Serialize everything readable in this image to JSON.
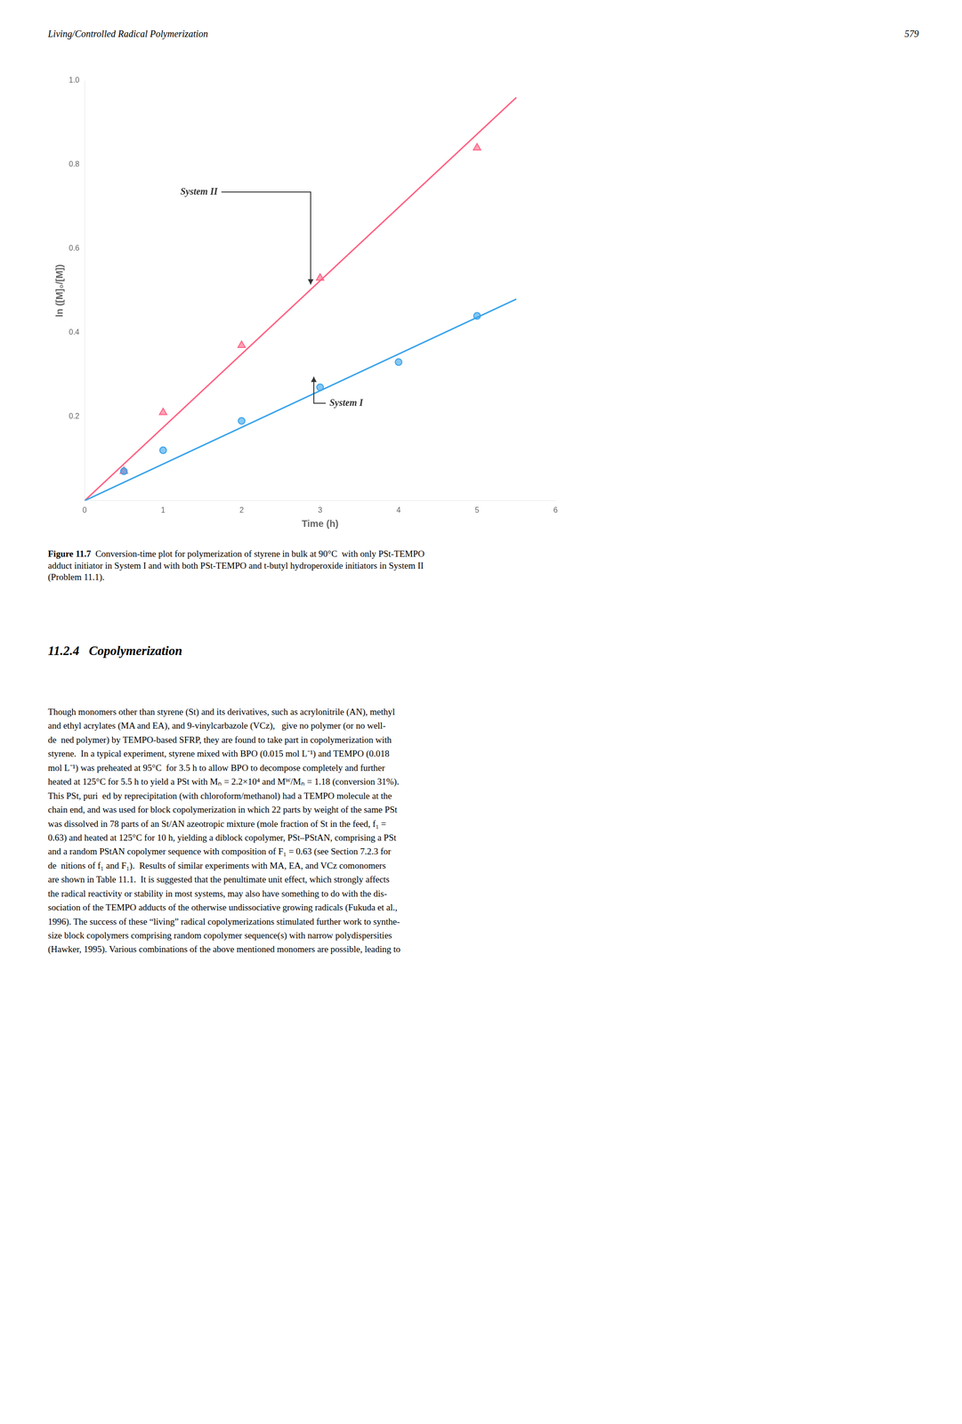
{
  "header_left": "Living/Controlled Radical Polymerization",
  "header_right": "579",
  "caption_bold": "Figure 11.7",
  "caption_rest": "  Conversion-time plot for polymerization of styrene in bulk at 90°C  with only PSt-TEMPO\nadduct initiator in System I and with both PSt-TEMPO and t-butyl hydroperoxide initiators in System II\n(Problem 11.1).",
  "section_title": "11.2.4   Copolymerization",
  "body_text": "Though monomers other than styrene (St) and its derivatives, such as acrylonitrile (AN), methyl\nand ethyl acrylates (MA and EA), and 9-vinylcarbazole (VCz),   give no polymer (or no well-\nde ned polymer) by TEMPO-based SFRP, they are found to take part in copolymerization with\nstyrene.  In a typical experiment, styrene mixed with BPO (0.015 mol L⁻¹) and TEMPO (0.018\nmol L⁻¹) was preheated at 95°C  for 3.5 h to allow BPO to decompose completely and further\nheated at 125°C for 5.5 h to yield a PSt with Mₙ = 2.2×10⁴ and Mᵂ/Mₙ = 1.18 (conversion 31%).\nThis PSt, puri ed by reprecipitation (with chloroform/methanol) had a TEMPO molecule at the\nchain end, and was used for block copolymerization in which 22 parts by weight of the same PSt\nwas dissolved in 78 parts of an St/AN azeotropic mixture (mole fraction of St in the feed, f₁ =\n0.63) and heated at 125°C for 10 h, yielding a diblock copolymer, PSt–PStAN, comprising a PSt\nand a random PStAN copolymer sequence with composition of F₁ = 0.63 (see Section 7.2.3 for\nde nitions of f₁ and F₁).  Results of similar experiments with MA, EA, and VCz comonomers\nare shown in Table 11.1.  It is suggested that the penultimate unit effect, which strongly affects\nthe radical reactivity or stability in most systems, may also have something to do with the dis-\nsociation of the TEMPO adducts of the otherwise undissociative growing radicals (Fukuda et al.,\n1996). The success of these “living” radical copolymerizations stimulated further work to synthe-\nsize block copolymers comprising random copolymer sequence(s) with narrow polydispersities\n(Hawker, 1995). Various combinations of the above mentioned monomers are possible, leading to",
  "chart_data": {
    "type": "scatter",
    "xlabel": "Time (h)",
    "ylabel": "ln ([M]₀/[M])",
    "xlim": [
      0,
      6
    ],
    "ylim": [
      0,
      1.0
    ],
    "xticks": [
      0,
      1,
      2,
      3,
      4,
      5,
      6
    ],
    "yticks": [
      0.2,
      0.4,
      0.6,
      0.8,
      {
        "value": 1.0,
        "label": "1.0"
      }
    ],
    "grid": false,
    "series": [
      {
        "name": "System I",
        "type": "line",
        "line_style": "solid",
        "x": [
          0,
          5.5
        ],
        "values": [
          0.0,
          0.48
        ]
      },
      {
        "name": "System II",
        "type": "line",
        "line_style": "solid",
        "x": [
          0,
          5.5
        ],
        "values": [
          0.0,
          0.96
        ]
      },
      {
        "name": "System I",
        "type": "scatter",
        "marker": "circle",
        "x": [
          0.5,
          1.0,
          2.0,
          3.0,
          4.0,
          5.0
        ],
        "values": [
          0.07,
          0.12,
          0.19,
          0.27,
          0.33,
          0.44
        ]
      },
      {
        "name": "System II",
        "type": "scatter",
        "marker": "triangle",
        "x": [
          0.5,
          1.0,
          2.0,
          3.0,
          5.0
        ],
        "values": [
          0.07,
          0.21,
          0.37,
          0.53,
          0.84
        ]
      }
    ],
    "annotations": [
      {
        "text": "System II",
        "x": 1.22,
        "y": 0.735,
        "arrow_x": 2.88,
        "arrow_y": 0.515
      },
      {
        "text": "System I",
        "x": 3.12,
        "y": 0.232,
        "arrow_x": 2.92,
        "arrow_y": 0.295
      }
    ]
  }
}
